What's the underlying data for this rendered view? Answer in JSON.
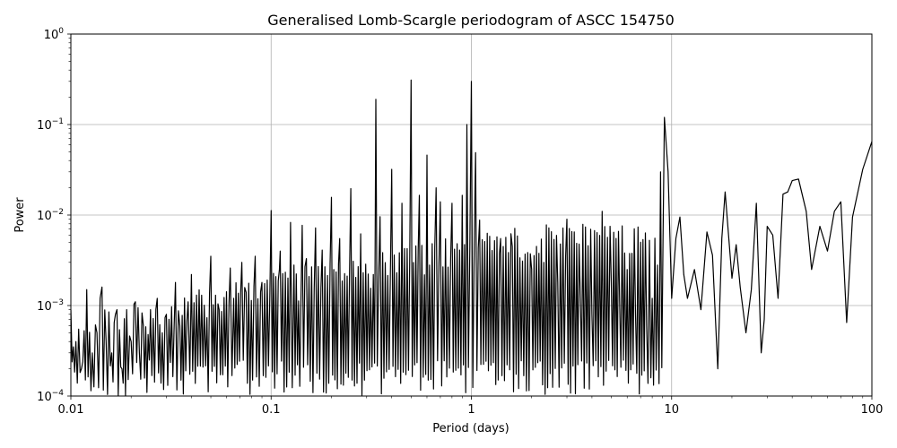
{
  "chart_data": {
    "type": "line",
    "title": "Generalised Lomb-Scargle periodogram of ASCC 154750",
    "xlabel": "Period (days)",
    "ylabel": "Power",
    "xscale": "log",
    "yscale": "log",
    "xlim": [
      0.01,
      100
    ],
    "ylim": [
      0.0001,
      1
    ],
    "grid": true,
    "line_color": "#000000",
    "grid_color": "#b0b0b0",
    "x_ticks": [
      {
        "value": 0.01,
        "label": "0.01"
      },
      {
        "value": 0.1,
        "label": "0.1"
      },
      {
        "value": 1,
        "label": "1"
      },
      {
        "value": 10,
        "label": "10"
      },
      {
        "value": 100,
        "label": "100"
      }
    ],
    "y_ticks": [
      {
        "value": 0.0001,
        "base": "10",
        "exp": "−4"
      },
      {
        "value": 0.001,
        "base": "10",
        "exp": "−3"
      },
      {
        "value": 0.01,
        "base": "10",
        "exp": "−2"
      },
      {
        "value": 0.1,
        "base": "10",
        "exp": "−1"
      },
      {
        "value": 1,
        "base": "10",
        "exp": "0"
      }
    ],
    "series": [
      {
        "x": [
          0.01,
          0.0106,
          0.0113,
          0.012,
          0.0128,
          0.0135,
          0.014,
          0.0143,
          0.015,
          0.016,
          0.0167,
          0.017,
          0.018,
          0.019,
          0.02,
          0.021,
          0.022,
          0.023,
          0.025,
          0.027,
          0.0286,
          0.03,
          0.0333,
          0.035,
          0.0385,
          0.04,
          0.045,
          0.05,
          0.055,
          0.0625,
          0.065,
          0.0714,
          0.075,
          0.0833,
          0.09,
          0.1,
          0.11,
          0.111,
          0.125,
          0.13,
          0.1429,
          0.15,
          0.1667,
          0.18,
          0.2,
          0.22,
          0.25,
          0.28,
          0.3333,
          0.35,
          0.4,
          0.45,
          0.5,
          0.55,
          0.6,
          0.6667,
          0.7,
          0.8,
          0.9,
          0.95,
          1.0,
          1.05,
          1.1,
          1.2,
          1.4,
          1.6,
          1.8,
          2.0,
          2.3,
          2.7,
          3.0,
          3.5,
          4.0,
          4.5,
          5.0,
          5.5,
          6.0,
          6.6,
          7.0,
          7.5,
          8.0,
          8.5,
          8.8,
          9.2,
          9.6,
          10.0,
          10.5,
          11.0,
          11.5,
          12.0,
          13.0,
          14.0,
          15.0,
          16.0,
          17.0,
          17.8,
          18.5,
          20.0,
          21.0,
          22.0,
          23.5,
          25.0,
          26.5,
          28.0,
          29.0,
          30.0,
          32.0,
          34.0,
          36.0,
          38.0,
          40.0,
          43.0,
          47.0,
          50.0,
          55.0,
          60.0,
          65.0,
          70.0,
          80.0,
          90.0,
          100.0
        ],
        "y": [
          0.0009,
          0.0004,
          0.0002,
          0.0015,
          0.0003,
          0.0005,
          0.0012,
          0.0016,
          0.0004,
          0.0003,
          0.0008,
          0.0009,
          0.0002,
          0.0009,
          0.0004,
          0.0011,
          0.0003,
          0.0006,
          0.0009,
          0.0012,
          0.0005,
          0.0008,
          0.0018,
          0.0006,
          0.0011,
          0.0022,
          0.0013,
          0.0035,
          0.0009,
          0.0026,
          0.0012,
          0.003,
          0.0014,
          0.0035,
          0.0018,
          0.0112,
          0.0025,
          0.004,
          0.0083,
          0.0028,
          0.0077,
          0.0033,
          0.0072,
          0.0041,
          0.0157,
          0.0055,
          0.0196,
          0.0062,
          0.19,
          0.0096,
          0.032,
          0.0135,
          0.31,
          0.0165,
          0.046,
          0.02,
          0.014,
          0.0135,
          0.0165,
          0.1,
          0.3,
          0.049,
          0.0088,
          0.0063,
          0.0055,
          0.0045,
          0.0031,
          0.0025,
          0.003,
          0.0018,
          0.009,
          0.0012,
          0.0008,
          0.011,
          0.0018,
          0.0011,
          0.0025,
          0.0008,
          0.005,
          0.0006,
          0.0012,
          0.0028,
          0.03,
          0.12,
          0.03,
          0.0012,
          0.0055,
          0.0095,
          0.0022,
          0.0012,
          0.0025,
          0.0009,
          0.0065,
          0.0036,
          0.0002,
          0.0055,
          0.018,
          0.002,
          0.0047,
          0.0016,
          0.0005,
          0.0015,
          0.0135,
          0.0003,
          0.0007,
          0.0075,
          0.006,
          0.0012,
          0.017,
          0.018,
          0.024,
          0.025,
          0.011,
          0.0025,
          0.0075,
          0.004,
          0.011,
          0.014,
          0.0095,
          0.032,
          0.065
        ]
      }
    ]
  }
}
